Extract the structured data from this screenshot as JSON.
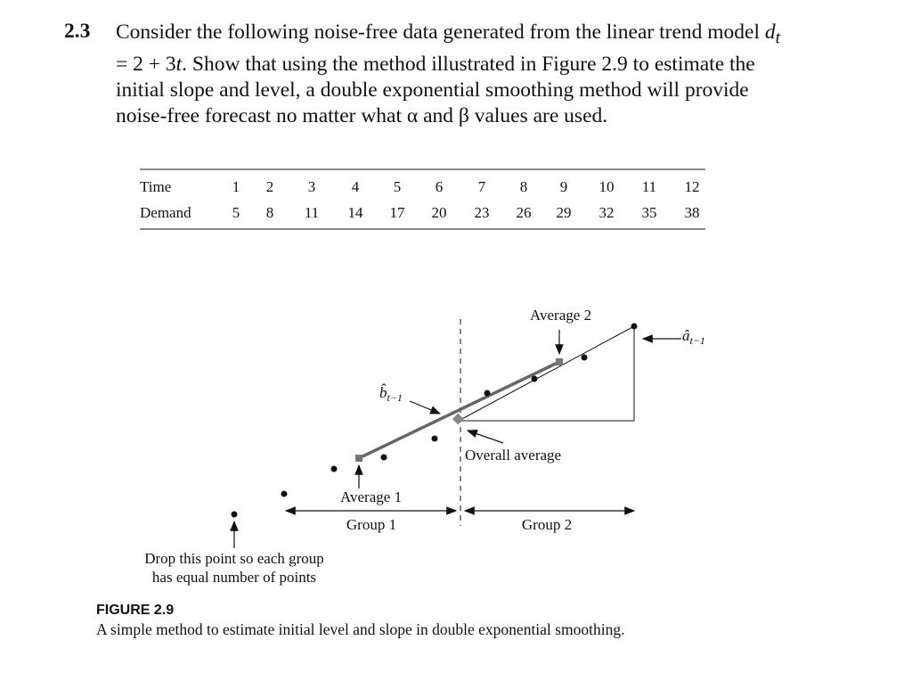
{
  "problem": {
    "number": "2.3",
    "text_start": "Consider the following noise-free data generated from the linear trend model ",
    "var_d": "d",
    "sub_t": "t",
    "equation": " = 2 + 3",
    "var_t": "t",
    "text_end": ". Show that using the method illustrated in Figure 2.9 to estimate the initial slope and level, a double exponential smoothing method will provide noise-free forecast no matter what α and β values are used."
  },
  "table": {
    "rows": [
      [
        "Time",
        1,
        2,
        3,
        4,
        5,
        6,
        7,
        8,
        9,
        10,
        11,
        12
      ],
      [
        "Demand",
        5,
        8,
        11,
        14,
        17,
        20,
        23,
        26,
        29,
        32,
        35,
        38
      ]
    ]
  },
  "figure": {
    "labels": {
      "average_2": "Average 2",
      "a_hat": "â",
      "a_sub": "t−1",
      "b_hat": "b̂",
      "b_sub": "t−1",
      "overall_average": "Overall average",
      "average_1": "Average 1",
      "group_1": "Group 1",
      "group_2": "Group 2",
      "drop_note": [
        "Drop this point so each group",
        "has equal number of points"
      ]
    },
    "caption": {
      "label": "FIGURE 2.9",
      "text": "A simple method to estimate initial level and slope in double exponential smoothing."
    }
  }
}
